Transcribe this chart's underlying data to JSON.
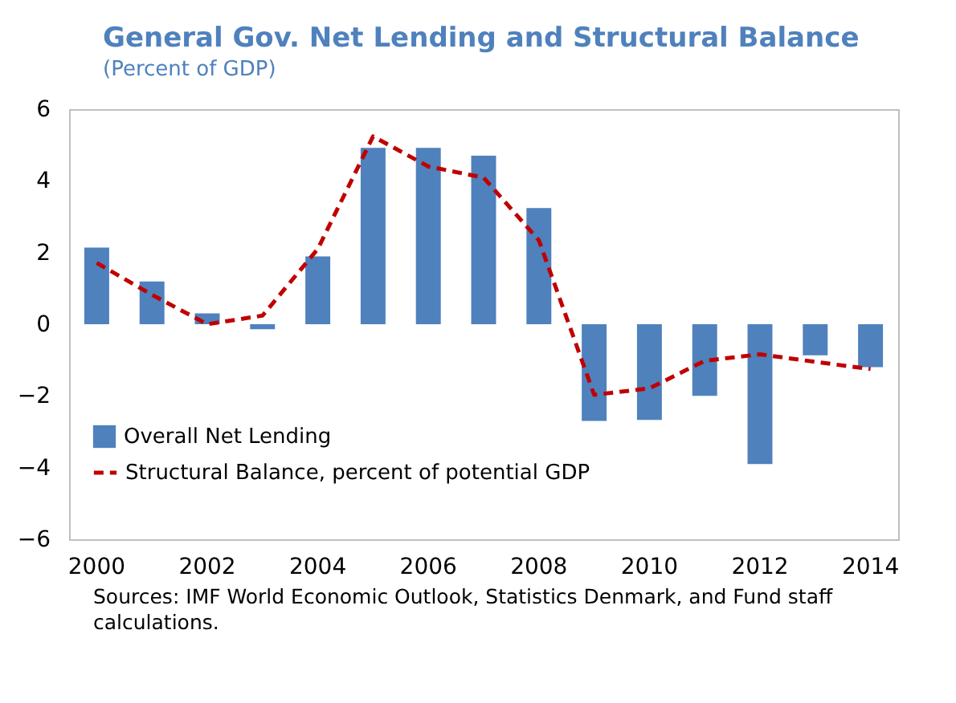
{
  "chart_data": {
    "type": "bar",
    "title": "General Gov. Net Lending and Structural Balance",
    "subtitle": "(Percent of GDP)",
    "categories": [
      "2000",
      null,
      "2002",
      null,
      "2004",
      null,
      "2006",
      null,
      "2008",
      null,
      "2010",
      null,
      "2012",
      null,
      "2014"
    ],
    "series": [
      {
        "name": "Overall Net Lending",
        "color": "#4f81bd",
        "values": [
          2.14,
          1.19,
          0.3,
          -0.14,
          1.89,
          4.92,
          4.92,
          4.7,
          3.24,
          -2.7,
          -2.67,
          -2.0,
          -3.9,
          -0.87,
          -1.2
        ]
      },
      {
        "name": "Structural Balance, percent of potential GDP",
        "type": "line",
        "line_style": "dashed",
        "color": "#c00000",
        "values": [
          1.71,
          0.82,
          0.0,
          0.24,
          2.1,
          5.24,
          4.4,
          4.09,
          2.34,
          -1.97,
          -1.79,
          -1.02,
          -0.84,
          -1.05,
          -1.25
        ]
      }
    ],
    "ylim": [
      -6,
      6
    ],
    "yticks": [
      -6,
      -4,
      -2,
      0,
      2,
      4,
      6
    ],
    "grid": false,
    "legend": "bottom left",
    "annotations": [
      "Sources: IMF World Economic Outlook, Statistics Denmark, and Fund staff calculations."
    ]
  }
}
